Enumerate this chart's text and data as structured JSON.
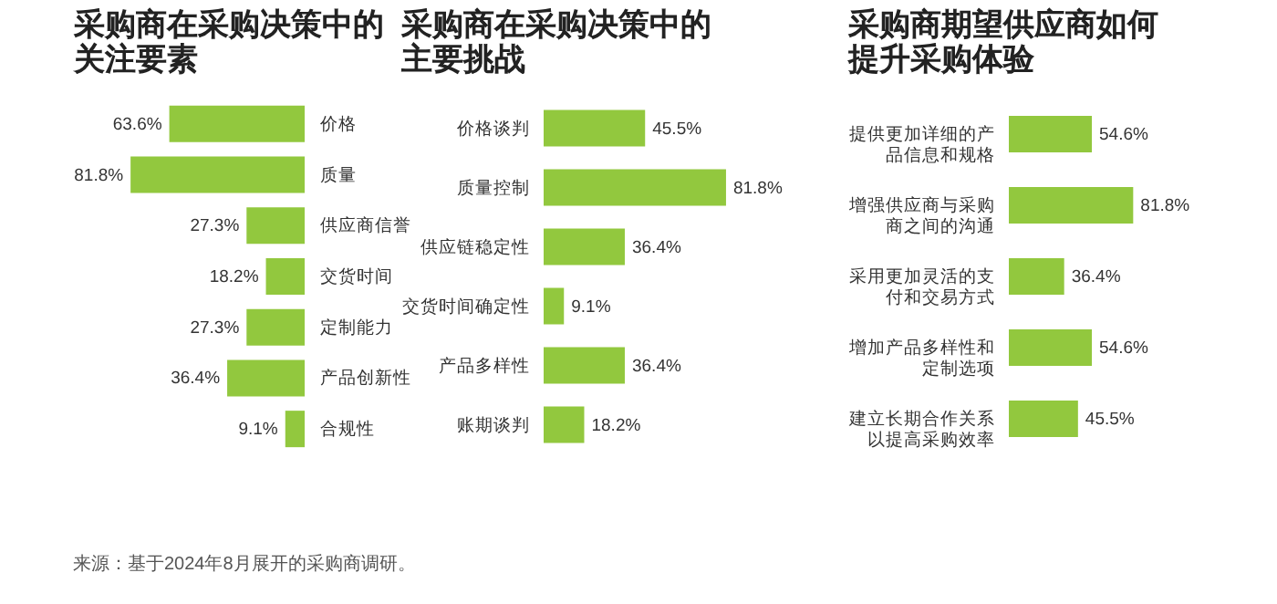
{
  "chart_data": [
    {
      "type": "bar",
      "orientation": "horizontal",
      "title": "采购商在采购决策中的关注要素",
      "categories": [
        "价格",
        "质量",
        "供应商信誉",
        "交货时间",
        "定制能力",
        "产品创新性",
        "合规性"
      ],
      "values": [
        63.6,
        81.8,
        27.3,
        18.2,
        27.3,
        36.4,
        9.1
      ],
      "value_labels": [
        "63.6%",
        "81.8%",
        "27.3%",
        "18.2%",
        "27.3%",
        "36.4%",
        "9.1%"
      ],
      "color": "#92c83e",
      "annotations": [
        "来源：基于2024年8月展开的采购商调研。"
      ]
    },
    {
      "type": "bar",
      "orientation": "horizontal",
      "title": "采购商在采购决策中的主要挑战",
      "categories": [
        "价格谈判",
        "质量控制",
        "供应链稳定性",
        "交货时间确定性",
        "产品多样性",
        "账期谈判"
      ],
      "values": [
        45.5,
        81.8,
        36.4,
        9.1,
        36.4,
        18.2
      ],
      "value_labels": [
        "45.5%",
        "81.8%",
        "36.4%",
        "9.1%",
        "36.4%",
        "18.2%"
      ],
      "color": "#92c83e"
    },
    {
      "type": "bar",
      "orientation": "horizontal",
      "title": "采购商期望供应商如何提升采购体验",
      "categories": [
        "提供更加详细的产品信息和规格",
        "增强供应商与采购商之间的沟通",
        "采用更加灵活的支付和交易方式",
        "增加产品多样性和定制选项",
        "建立长期合作关系以提高采购效率"
      ],
      "values": [
        54.6,
        81.8,
        36.4,
        54.6,
        45.5
      ],
      "value_labels": [
        "54.6%",
        "81.8%",
        "36.4%",
        "54.6%",
        "45.5%"
      ],
      "color": "#92c83e"
    }
  ]
}
